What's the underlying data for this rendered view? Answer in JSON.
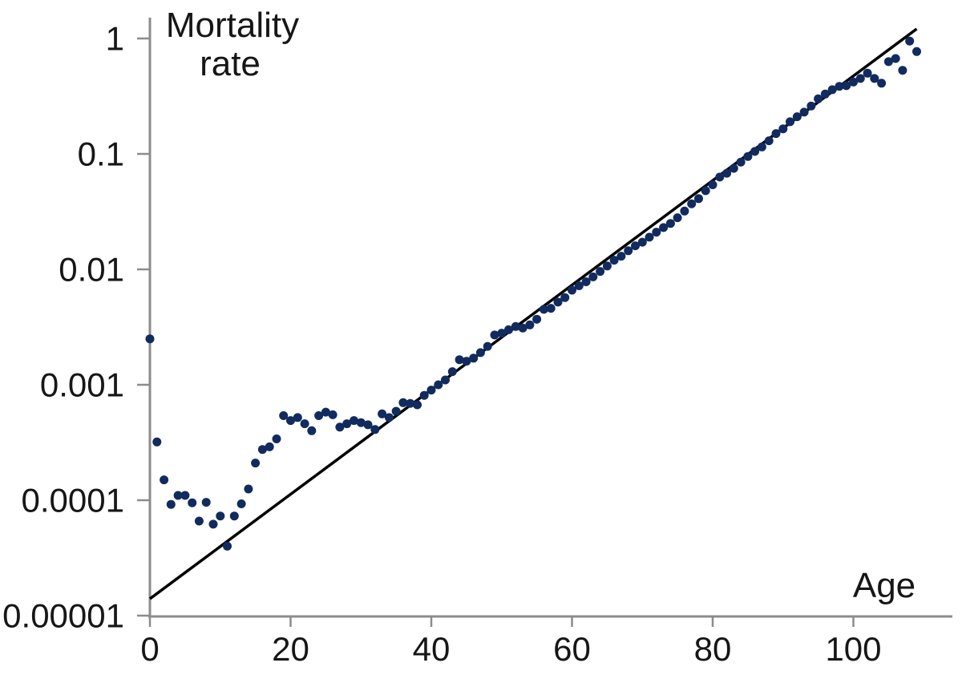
{
  "figure": {
    "title_line1": "Mortality",
    "title_line2": "rate",
    "x_axis_label": "Age"
  },
  "colors": {
    "point_color": "#122b5e",
    "trend_line_color": "#000000",
    "axis_color": "#8c8c8c",
    "text_color": "#161616",
    "background": "#ffffff"
  },
  "chart_data": {
    "type": "scatter",
    "title": "Mortality rate",
    "xlabel": "Age",
    "ylabel": "Mortality rate",
    "y_scale": "log",
    "grid": false,
    "legend_position": "none",
    "xlim": [
      0,
      114
    ],
    "ylim": [
      1e-05,
      1
    ],
    "x_ticks": [
      0,
      20,
      40,
      60,
      80,
      100
    ],
    "y_ticks": [
      1,
      0.1,
      0.01,
      0.001,
      0.0001,
      1e-05
    ],
    "y_tick_labels": [
      "1",
      "0.1",
      "0.01",
      "0.001",
      "0.0001",
      "0.00001"
    ],
    "series": [
      {
        "name": "observed-mortality-rate",
        "type": "scatter",
        "ages": [
          0,
          1,
          2,
          3,
          4,
          5,
          6,
          7,
          8,
          9,
          10,
          11,
          12,
          13,
          14,
          15,
          16,
          17,
          18,
          19,
          20,
          21,
          22,
          23,
          24,
          25,
          26,
          27,
          28,
          29,
          30,
          31,
          32,
          33,
          34,
          35,
          36,
          37,
          38,
          39,
          40,
          41,
          42,
          43,
          44,
          45,
          46,
          47,
          48,
          49,
          50,
          51,
          52,
          53,
          54,
          55,
          56,
          57,
          58,
          59,
          60,
          61,
          62,
          63,
          64,
          65,
          66,
          67,
          68,
          69,
          70,
          71,
          72,
          73,
          74,
          75,
          76,
          77,
          78,
          79,
          80,
          81,
          82,
          83,
          84,
          85,
          86,
          87,
          88,
          89,
          90,
          91,
          92,
          93,
          94,
          95,
          96,
          97,
          98,
          99,
          100,
          101,
          102,
          103,
          104,
          105,
          106,
          107,
          108,
          109
        ],
        "values": [
          0.0025,
          0.00032,
          0.00015,
          9.2e-05,
          0.00011,
          0.00011,
          9.5e-05,
          6.6e-05,
          9.6e-05,
          6.2e-05,
          7.3e-05,
          4e-05,
          7.3e-05,
          9.3e-05,
          0.000125,
          0.00021,
          0.000275,
          0.00029,
          0.00034,
          0.00054,
          0.00049,
          0.00052,
          0.00046,
          0.0004,
          0.00054,
          0.00058,
          0.00055,
          0.00043,
          0.00046,
          0.00049,
          0.00047,
          0.00045,
          0.00041,
          0.00056,
          0.00052,
          0.00059,
          0.0007,
          0.00069,
          0.00067,
          0.00081,
          0.0009,
          0.001,
          0.0011,
          0.0013,
          0.00165,
          0.0016,
          0.0017,
          0.0019,
          0.00215,
          0.0027,
          0.0028,
          0.003,
          0.0032,
          0.0031,
          0.0033,
          0.0037,
          0.0045,
          0.0046,
          0.0052,
          0.0057,
          0.0066,
          0.0072,
          0.0078,
          0.0086,
          0.0096,
          0.0107,
          0.012,
          0.013,
          0.0145,
          0.016,
          0.0172,
          0.019,
          0.021,
          0.023,
          0.025,
          0.028,
          0.032,
          0.037,
          0.041,
          0.048,
          0.054,
          0.063,
          0.068,
          0.075,
          0.085,
          0.095,
          0.105,
          0.115,
          0.13,
          0.15,
          0.165,
          0.19,
          0.21,
          0.23,
          0.26,
          0.3,
          0.33,
          0.36,
          0.385,
          0.39,
          0.42,
          0.45,
          0.5,
          0.45,
          0.41,
          0.63,
          0.67,
          0.53,
          0.95,
          0.77
        ]
      },
      {
        "name": "gompertz-fit-line",
        "type": "line",
        "x": [
          0,
          109
        ],
        "y": [
          1.4e-05,
          1.21
        ]
      }
    ]
  }
}
